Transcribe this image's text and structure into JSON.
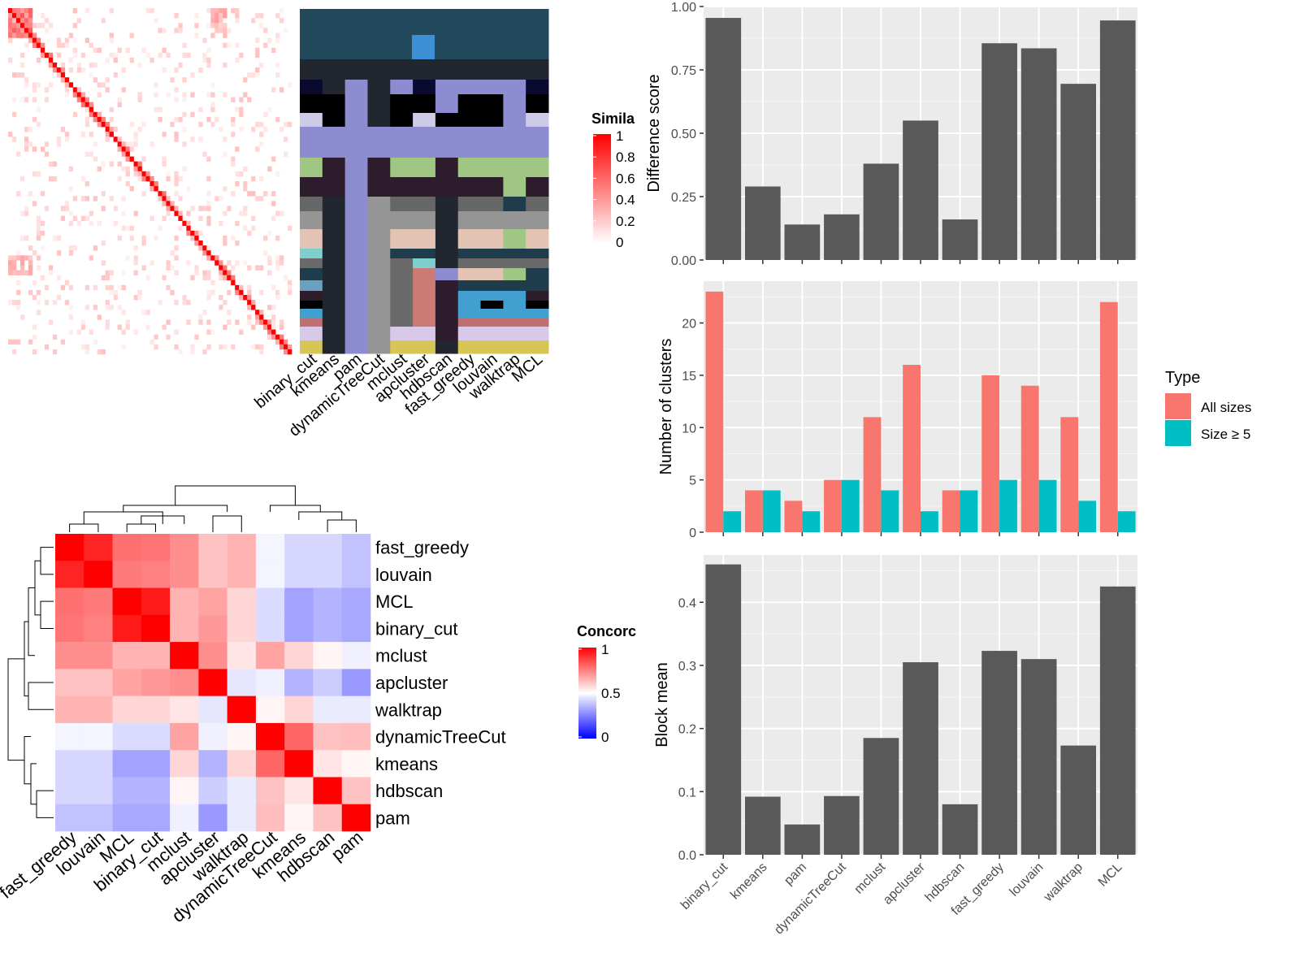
{
  "chart_data": [
    {
      "type": "heatmap",
      "id": "similarity-heatmap",
      "legend_title": "Simila",
      "legend_ticks": [
        "1",
        "0.8",
        "0.6",
        "0.4",
        "0.2",
        "0"
      ],
      "colors": {
        "high": "#ff0000",
        "low": "#ffffff"
      },
      "approx_size": 70
    },
    {
      "type": "heatmap",
      "id": "cluster-assignment-heatmap",
      "methods": [
        "binary_cut",
        "kmeans",
        "pam",
        "dynamicTreeCut",
        "mclust",
        "apcluster",
        "hdbscan",
        "fast_greedy",
        "louvain",
        "walktrap",
        "MCL"
      ]
    },
    {
      "type": "heatmap",
      "id": "concordance-heatmap",
      "legend_title": "Concorc",
      "legend_ticks": [
        "1",
        "0.5",
        "0"
      ],
      "colors": {
        "high": "#ff0000",
        "mid": "#ffffff",
        "low": "#0000ff"
      },
      "row_labels": [
        "fast_greedy",
        "louvain",
        "MCL",
        "binary_cut",
        "mclust",
        "apcluster",
        "walktrap",
        "dynamicTreeCut",
        "kmeans",
        "hdbscan",
        "pam"
      ],
      "col_labels": [
        "fast_greedy",
        "louvain",
        "MCL",
        "binary_cut",
        "mclust",
        "apcluster",
        "walktrap",
        "dynamicTreeCut",
        "kmeans",
        "hdbscan",
        "pam"
      ],
      "values": [
        [
          1.0,
          0.93,
          0.78,
          0.77,
          0.72,
          0.62,
          0.65,
          0.48,
          0.42,
          0.42,
          0.38
        ],
        [
          0.93,
          1.0,
          0.76,
          0.75,
          0.72,
          0.62,
          0.65,
          0.48,
          0.42,
          0.42,
          0.38
        ],
        [
          0.78,
          0.76,
          1.0,
          0.95,
          0.65,
          0.68,
          0.58,
          0.43,
          0.32,
          0.35,
          0.33
        ],
        [
          0.77,
          0.75,
          0.95,
          1.0,
          0.65,
          0.7,
          0.58,
          0.43,
          0.32,
          0.35,
          0.33
        ],
        [
          0.72,
          0.72,
          0.65,
          0.65,
          1.0,
          0.72,
          0.55,
          0.68,
          0.58,
          0.52,
          0.47
        ],
        [
          0.62,
          0.62,
          0.68,
          0.7,
          0.72,
          1.0,
          0.45,
          0.47,
          0.35,
          0.4,
          0.3
        ],
        [
          0.65,
          0.65,
          0.58,
          0.58,
          0.55,
          0.45,
          1.0,
          0.52,
          0.58,
          0.46,
          0.46
        ],
        [
          0.48,
          0.48,
          0.43,
          0.43,
          0.68,
          0.47,
          0.52,
          1.0,
          0.8,
          0.62,
          0.63
        ],
        [
          0.42,
          0.42,
          0.32,
          0.32,
          0.58,
          0.35,
          0.58,
          0.8,
          1.0,
          0.55,
          0.52
        ],
        [
          0.42,
          0.42,
          0.35,
          0.35,
          0.52,
          0.4,
          0.46,
          0.62,
          0.55,
          1.0,
          0.62
        ],
        [
          0.38,
          0.38,
          0.33,
          0.33,
          0.47,
          0.3,
          0.46,
          0.63,
          0.52,
          0.62,
          1.0
        ]
      ]
    },
    {
      "type": "bar",
      "id": "difference-score",
      "categories": [
        "binary_cut",
        "kmeans",
        "pam",
        "dynamicTreeCut",
        "mclust",
        "apcluster",
        "hdbscan",
        "fast_greedy",
        "louvain",
        "walktrap",
        "MCL"
      ],
      "values": [
        0.955,
        0.29,
        0.14,
        0.18,
        0.38,
        0.55,
        0.16,
        0.855,
        0.835,
        0.695,
        0.945
      ],
      "ylabel": "Difference score",
      "ylim": [
        0,
        1
      ],
      "yticks": [
        "0.00",
        "0.25",
        "0.50",
        "0.75",
        "1.00"
      ],
      "bar_color": "#595959"
    },
    {
      "type": "bar",
      "id": "number-of-clusters",
      "categories": [
        "binary_cut",
        "kmeans",
        "pam",
        "dynamicTreeCut",
        "mclust",
        "apcluster",
        "hdbscan",
        "fast_greedy",
        "louvain",
        "walktrap",
        "MCL"
      ],
      "series": [
        {
          "name": "All sizes",
          "color": "#f8766d",
          "values": [
            23,
            4,
            3,
            5,
            11,
            16,
            4,
            15,
            14,
            11,
            22
          ]
        },
        {
          "name": "Size ≥ 5",
          "color": "#00bfc4",
          "values": [
            2,
            4,
            2,
            5,
            4,
            2,
            4,
            5,
            5,
            3,
            2
          ]
        }
      ],
      "ylabel": "Number of clusters",
      "ylim": [
        0,
        24
      ],
      "yticks": [
        "0",
        "5",
        "10",
        "15",
        "20"
      ],
      "legend_title": "Type",
      "legend_position": "right"
    },
    {
      "type": "bar",
      "id": "block-mean",
      "categories": [
        "binary_cut",
        "kmeans",
        "pam",
        "dynamicTreeCut",
        "mclust",
        "apcluster",
        "hdbscan",
        "fast_greedy",
        "louvain",
        "walktrap",
        "MCL"
      ],
      "values": [
        0.46,
        0.092,
        0.048,
        0.093,
        0.185,
        0.305,
        0.08,
        0.323,
        0.31,
        0.173,
        0.425
      ],
      "ylabel": "Block mean",
      "ylim": [
        0,
        0.475
      ],
      "yticks": [
        "0.0",
        "0.1",
        "0.2",
        "0.3",
        "0.4"
      ],
      "bar_color": "#595959"
    }
  ]
}
